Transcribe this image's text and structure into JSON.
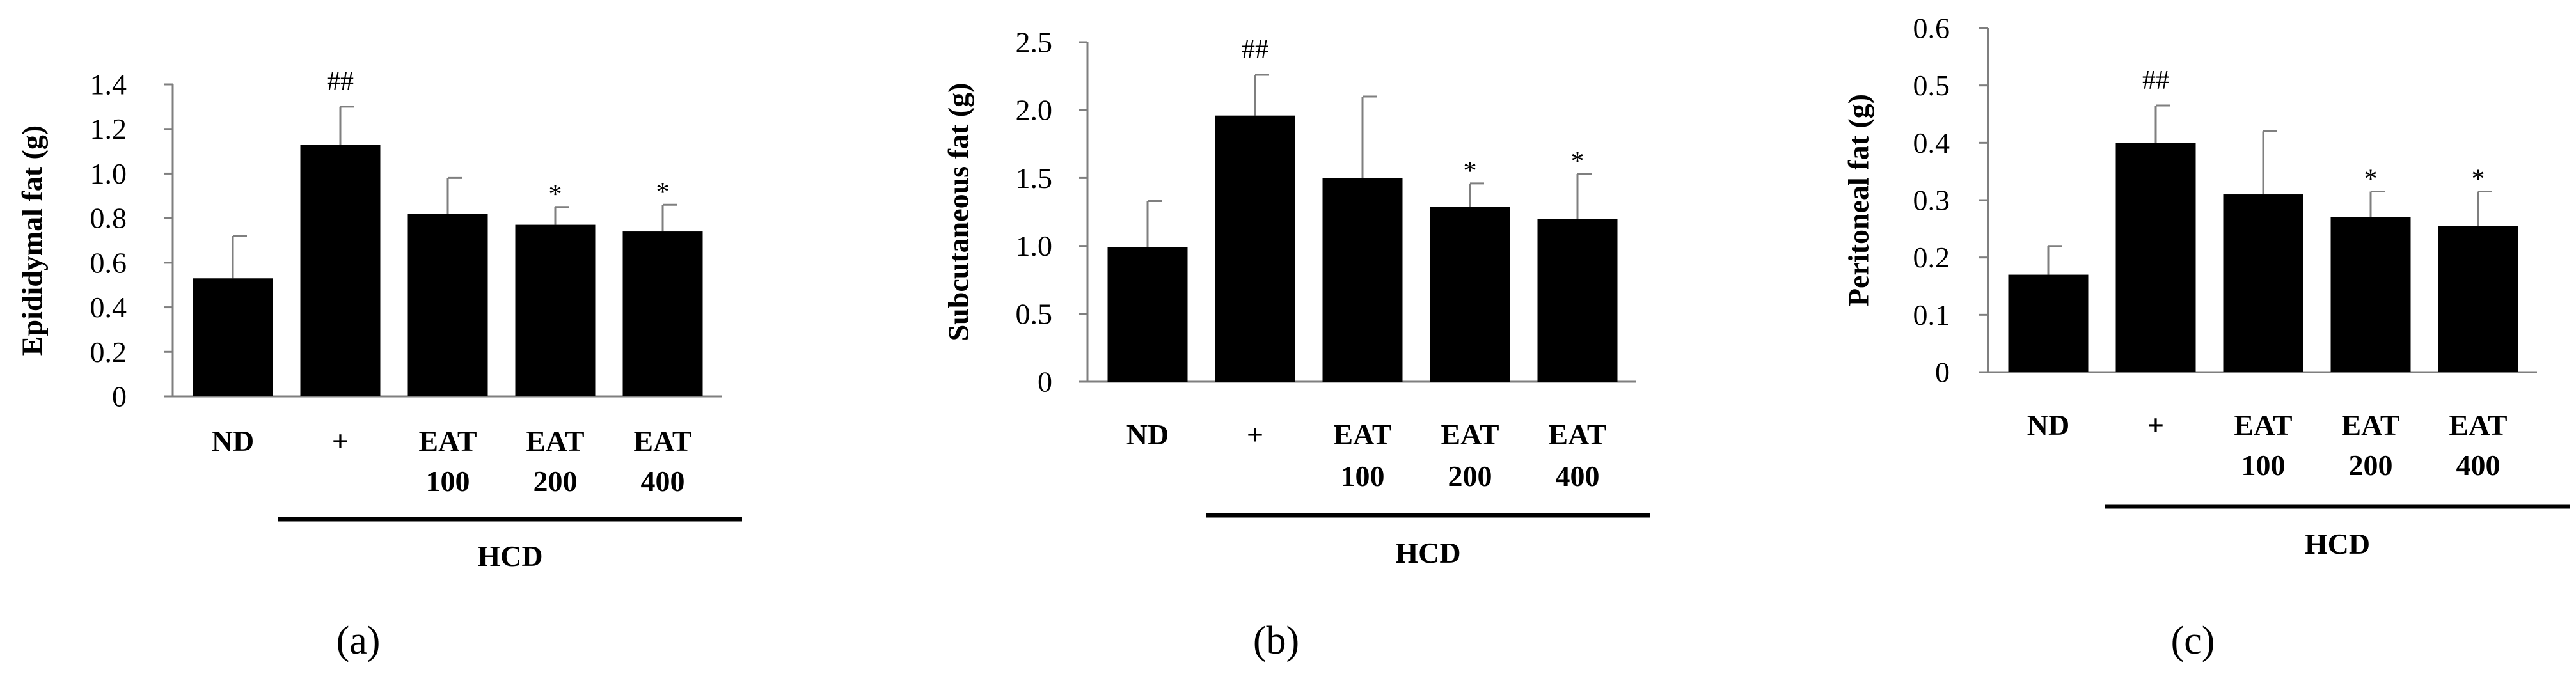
{
  "colors": {
    "bar": "#000000",
    "axis": "#7f7f7f",
    "error": "#7f7f7f",
    "text": "#000000"
  },
  "chart_data": [
    {
      "type": "bar",
      "panel_label": "(a)",
      "ylabel": "Epididymal fat (g)",
      "ylim": [
        0,
        1.4
      ],
      "yticks": [
        "0",
        "0.2",
        "0.4",
        "0.6",
        "0.8",
        "1.0",
        "1.2",
        "1.4"
      ],
      "categories": [
        {
          "line1": "ND",
          "line2": ""
        },
        {
          "line1": "+",
          "line2": ""
        },
        {
          "line1": "EAT",
          "line2": "100"
        },
        {
          "line1": "EAT",
          "line2": "200"
        },
        {
          "line1": "EAT",
          "line2": "400"
        }
      ],
      "values": [
        0.53,
        1.13,
        0.82,
        0.77,
        0.74
      ],
      "errors": [
        0.19,
        0.17,
        0.16,
        0.08,
        0.12
      ],
      "annotations": [
        "",
        "##",
        "",
        "*",
        "*"
      ],
      "group_label": "HCD"
    },
    {
      "type": "bar",
      "panel_label": "(b)",
      "ylabel": "Subcutaneous fat (g)",
      "ylim": [
        0,
        2.5
      ],
      "yticks": [
        "0",
        "0.5",
        "1.0",
        "1.5",
        "2.0",
        "2.5"
      ],
      "categories": [
        {
          "line1": "ND",
          "line2": ""
        },
        {
          "line1": "+",
          "line2": ""
        },
        {
          "line1": "EAT",
          "line2": "100"
        },
        {
          "line1": "EAT",
          "line2": "200"
        },
        {
          "line1": "EAT",
          "line2": "400"
        }
      ],
      "values": [
        0.99,
        1.96,
        1.5,
        1.29,
        1.2
      ],
      "errors": [
        0.34,
        0.3,
        0.6,
        0.17,
        0.33
      ],
      "annotations": [
        "",
        "##",
        "",
        "*",
        "*"
      ],
      "group_label": "HCD"
    },
    {
      "type": "bar",
      "panel_label": "(c)",
      "ylabel": "Peritoneal fat (g)",
      "ylim": [
        0,
        0.6
      ],
      "yticks": [
        "0",
        "0.1",
        "0.2",
        "0.3",
        "0.4",
        "0.5",
        "0.6"
      ],
      "categories": [
        {
          "line1": "ND",
          "line2": ""
        },
        {
          "line1": "+",
          "line2": ""
        },
        {
          "line1": "EAT",
          "line2": "100"
        },
        {
          "line1": "EAT",
          "line2": "200"
        },
        {
          "line1": "EAT",
          "line2": "400"
        }
      ],
      "values": [
        0.17,
        0.4,
        0.31,
        0.27,
        0.255
      ],
      "errors": [
        0.05,
        0.065,
        0.11,
        0.045,
        0.06
      ],
      "annotations": [
        "",
        "##",
        "",
        "*",
        "*"
      ],
      "group_label": "HCD"
    }
  ]
}
